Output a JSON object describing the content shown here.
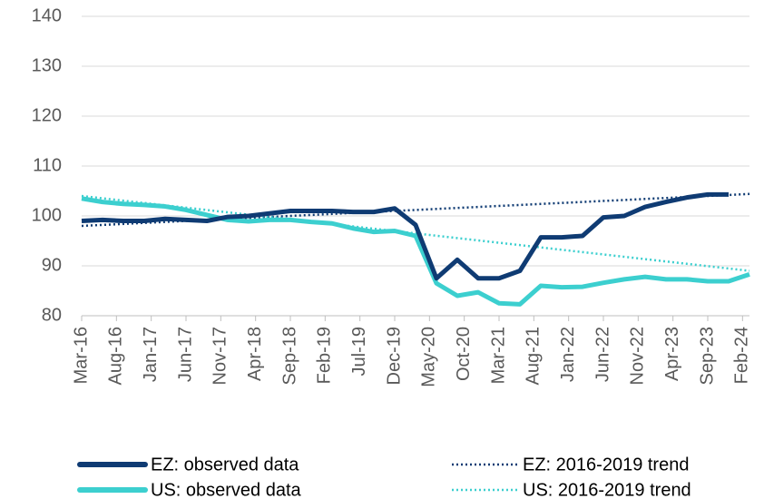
{
  "chart_data": {
    "type": "line",
    "xlim": [
      "2016-03",
      "2024-03"
    ],
    "xticks": [
      {
        "value": "2016-03",
        "label": "Mar-16"
      },
      {
        "value": "2016-08",
        "label": "Aug-16"
      },
      {
        "value": "2017-01",
        "label": "Jan-17"
      },
      {
        "value": "2017-06",
        "label": "Jun-17"
      },
      {
        "value": "2017-11",
        "label": "Nov-17"
      },
      {
        "value": "2018-04",
        "label": "Apr-18"
      },
      {
        "value": "2018-09",
        "label": "Sep-18"
      },
      {
        "value": "2019-02",
        "label": "Feb-19"
      },
      {
        "value": "2019-07",
        "label": "Jul-19"
      },
      {
        "value": "2019-12",
        "label": "Dec-19"
      },
      {
        "value": "2020-05",
        "label": "May-20"
      },
      {
        "value": "2020-10",
        "label": "Oct-20"
      },
      {
        "value": "2021-03",
        "label": "Mar-21"
      },
      {
        "value": "2021-08",
        "label": "Aug-21"
      },
      {
        "value": "2022-01",
        "label": "Jan-22"
      },
      {
        "value": "2022-06",
        "label": "Jun-22"
      },
      {
        "value": "2022-11",
        "label": "Nov-22"
      },
      {
        "value": "2023-04",
        "label": "Apr-23"
      },
      {
        "value": "2023-09",
        "label": "Sep-23"
      },
      {
        "value": "2024-02",
        "label": "Feb-24"
      }
    ],
    "ylim": [
      80,
      140
    ],
    "yticks": [
      80,
      90,
      100,
      110,
      120,
      130,
      140
    ],
    "grid": true,
    "legend": "bottom",
    "series": [
      {
        "name": "EZ: observed data",
        "color": "#0f3b73",
        "style": "solid",
        "x": [
          "2016-03",
          "2016-06",
          "2016-09",
          "2016-12",
          "2017-03",
          "2017-06",
          "2017-09",
          "2017-12",
          "2018-03",
          "2018-06",
          "2018-09",
          "2018-12",
          "2019-03",
          "2019-06",
          "2019-09",
          "2019-12",
          "2020-03",
          "2020-06",
          "2020-09",
          "2020-12",
          "2021-03",
          "2021-06",
          "2021-09",
          "2021-12",
          "2022-03",
          "2022-06",
          "2022-09",
          "2022-12",
          "2023-03",
          "2023-06",
          "2023-09",
          "2023-12"
        ],
        "values": [
          99,
          99.2,
          99,
          99,
          99.4,
          99.2,
          99,
          99.8,
          100,
          100.5,
          101,
          101,
          101,
          100.8,
          100.8,
          101.5,
          98.2,
          87.5,
          91.2,
          87.5,
          87.5,
          89,
          95.7,
          95.7,
          96,
          99.7,
          100,
          101.8,
          102.8,
          103.7,
          104.3,
          104.3
        ]
      },
      {
        "name": "US: observed data",
        "color": "#3ccfcf",
        "style": "solid",
        "x": [
          "2016-03",
          "2016-06",
          "2016-09",
          "2016-12",
          "2017-03",
          "2017-06",
          "2017-09",
          "2017-12",
          "2018-03",
          "2018-06",
          "2018-09",
          "2018-12",
          "2019-03",
          "2019-06",
          "2019-09",
          "2019-12",
          "2020-03",
          "2020-06",
          "2020-09",
          "2020-12",
          "2021-03",
          "2021-06",
          "2021-09",
          "2021-12",
          "2022-03",
          "2022-06",
          "2022-09",
          "2022-12",
          "2023-03",
          "2023-06",
          "2023-09",
          "2023-12",
          "2024-03"
        ],
        "values": [
          103.5,
          102.8,
          102.4,
          102.2,
          101.9,
          101.2,
          100.2,
          99.2,
          98.9,
          99.2,
          99.2,
          98.8,
          98.5,
          97.5,
          96.8,
          97,
          96,
          86.5,
          84,
          84.7,
          82.5,
          82.3,
          86,
          85.7,
          85.8,
          86.6,
          87.3,
          87.8,
          87.3,
          87.3,
          86.9,
          86.9,
          88.3
        ]
      },
      {
        "name": "EZ: 2016-2019 trend",
        "color": "#0f3b73",
        "style": "dotted",
        "x": [
          "2016-03",
          "2024-03"
        ],
        "values": [
          98,
          104.4
        ]
      },
      {
        "name": "US: 2016-2019 trend",
        "color": "#3ccfcf",
        "style": "dotted",
        "x": [
          "2016-03",
          "2024-03"
        ],
        "values": [
          104,
          89
        ]
      }
    ]
  }
}
